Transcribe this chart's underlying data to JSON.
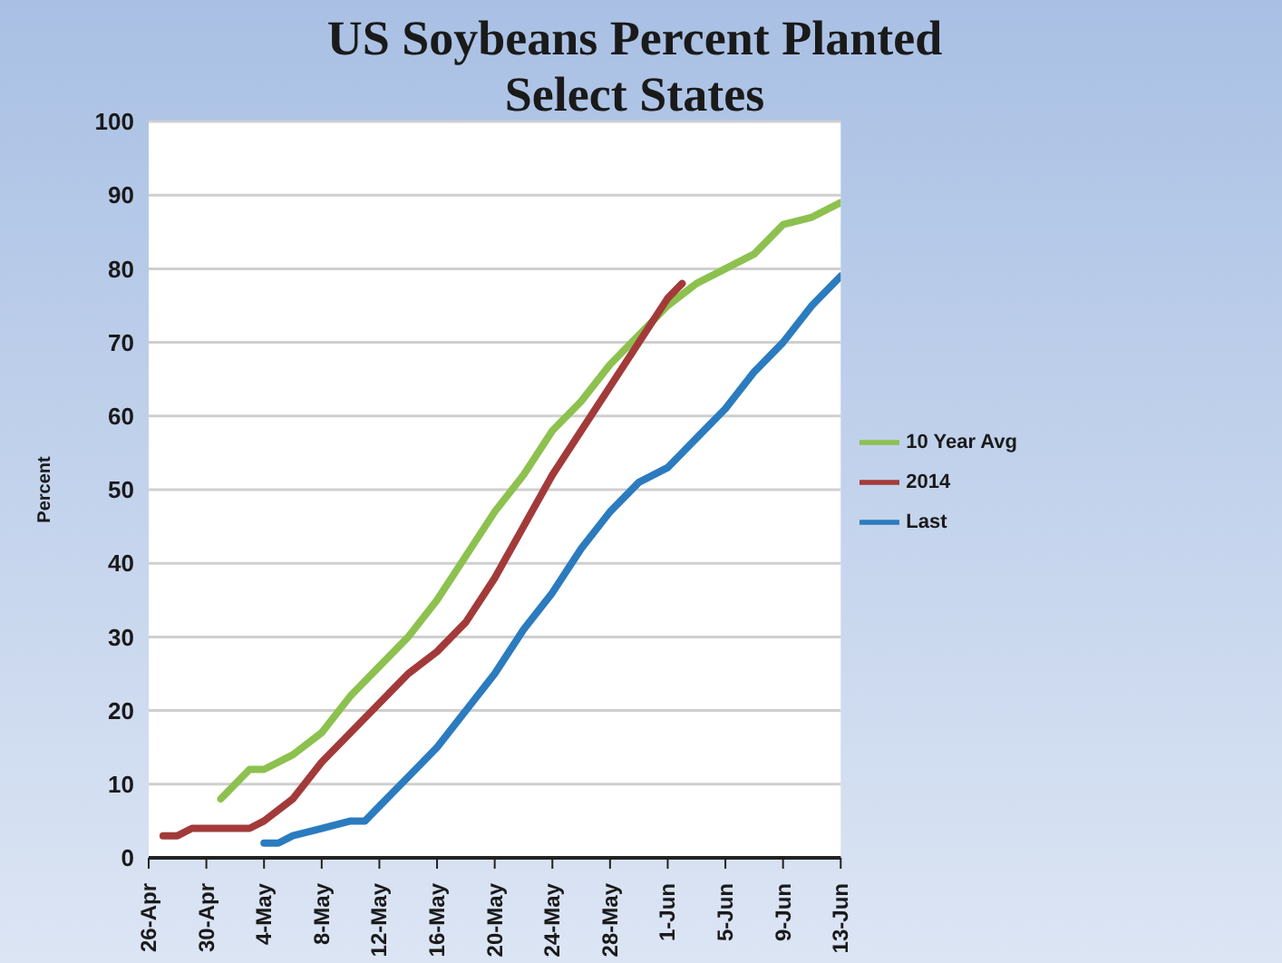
{
  "chart_data": {
    "type": "line",
    "title": "US Soybeans Percent Planted Select States",
    "ylabel": "Percent",
    "xlim": [
      "--04-26",
      "--06-13"
    ],
    "xticks": [
      {
        "value": "--04-26",
        "label": "26-Apr"
      },
      {
        "value": "--04-30",
        "label": "30-Apr"
      },
      {
        "value": "--05-04",
        "label": "4-May"
      },
      {
        "value": "--05-08",
        "label": "8-May"
      },
      {
        "value": "--05-12",
        "label": "12-May"
      },
      {
        "value": "--05-16",
        "label": "16-May"
      },
      {
        "value": "--05-20",
        "label": "20-May"
      },
      {
        "value": "--05-24",
        "label": "24-May"
      },
      {
        "value": "--05-28",
        "label": "28-May"
      },
      {
        "value": "--06-01",
        "label": "1-Jun"
      },
      {
        "value": "--06-05",
        "label": "5-Jun"
      },
      {
        "value": "--06-09",
        "label": "9-Jun"
      },
      {
        "value": "--06-13",
        "label": "13-Jun"
      }
    ],
    "ylim": [
      0,
      100
    ],
    "yticks": [
      0,
      10,
      20,
      30,
      40,
      50,
      60,
      70,
      80,
      90,
      100
    ],
    "grid": "y",
    "legend": "right",
    "marker": "none",
    "line_style": "solid",
    "series": [
      {
        "name": "10 Year Avg",
        "color": "#8dc14f",
        "x": [
          "--05-01",
          "--05-03",
          "--05-04",
          "--05-06",
          "--05-08",
          "--05-10",
          "--05-12",
          "--05-14",
          "--05-16",
          "--05-18",
          "--05-20",
          "--05-22",
          "--05-24",
          "--05-26",
          "--05-28",
          "--05-30",
          "--06-01",
          "--06-03",
          "--06-05",
          "--06-07",
          "--06-09",
          "--06-11",
          "--06-13"
        ],
        "values": [
          8,
          12,
          12,
          14,
          17,
          22,
          26,
          30,
          35,
          41,
          47,
          52,
          58,
          62,
          67,
          71,
          75,
          78,
          80,
          82,
          86,
          87,
          89
        ]
      },
      {
        "name": "Last",
        "color": "#2b7bbf",
        "x": [
          "--05-04",
          "--05-05",
          "--05-06",
          "--05-08",
          "--05-10",
          "--05-11",
          "--05-12",
          "--05-14",
          "--05-16",
          "--05-18",
          "--05-20",
          "--05-22",
          "--05-24",
          "--05-26",
          "--05-28",
          "--05-30",
          "--06-01",
          "--06-03",
          "--06-05",
          "--06-07",
          "--06-09",
          "--06-11",
          "--06-13"
        ],
        "values": [
          2,
          2,
          3,
          4,
          5,
          5,
          7,
          11,
          15,
          20,
          25,
          31,
          36,
          42,
          47,
          51,
          53,
          57,
          61,
          66,
          70,
          75,
          79
        ]
      },
      {
        "name": "2014",
        "color": "#a33a3a",
        "x": [
          "--04-27",
          "--04-28",
          "--04-29",
          "--05-01",
          "--05-03",
          "--05-04",
          "--05-06",
          "--05-08",
          "--05-10",
          "--05-12",
          "--05-14",
          "--05-16",
          "--05-18",
          "--05-20",
          "--05-22",
          "--05-24",
          "--05-26",
          "--05-28",
          "--05-30",
          "--06-01",
          "--06-02"
        ],
        "values": [
          3,
          3,
          4,
          4,
          4,
          5,
          8,
          13,
          17,
          21,
          25,
          28,
          32,
          38,
          45,
          52,
          58,
          64,
          70,
          76,
          78
        ]
      }
    ]
  }
}
